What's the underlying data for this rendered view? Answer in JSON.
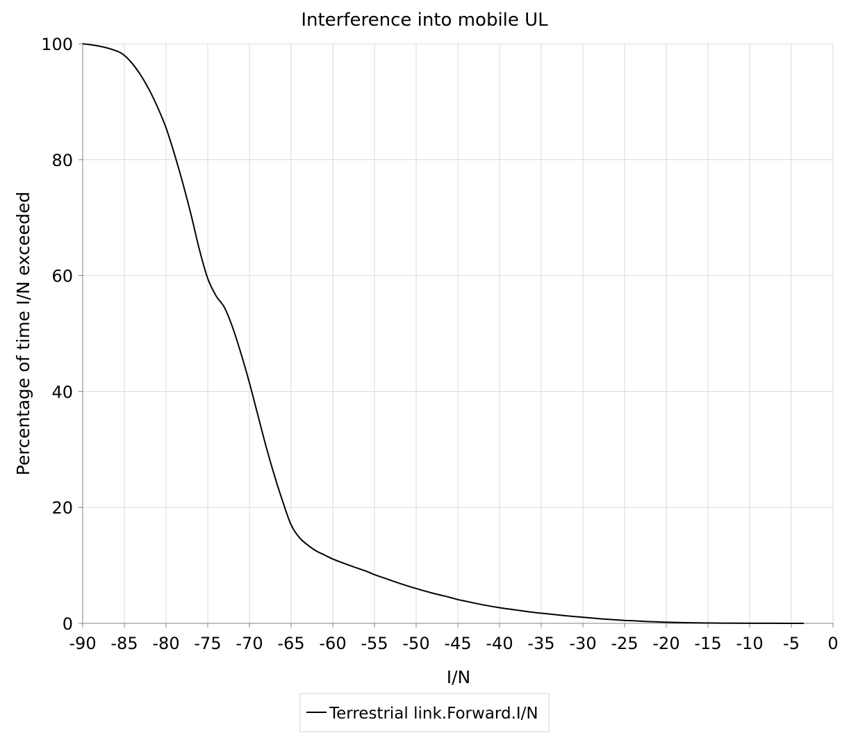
{
  "chart_data": {
    "type": "line",
    "title": "Interference into mobile UL",
    "xlabel": "I/N",
    "ylabel": "Percentage of time I/N exceeded",
    "xlim": [
      -90,
      0
    ],
    "ylim": [
      0,
      100
    ],
    "x_ticks": [
      -90,
      -85,
      -80,
      -75,
      -70,
      -65,
      -60,
      -55,
      -50,
      -45,
      -40,
      -35,
      -30,
      -25,
      -20,
      -15,
      -10,
      -5,
      0
    ],
    "y_ticks": [
      0,
      20,
      40,
      60,
      80,
      100
    ],
    "x_tick_labels": [
      "-90",
      "-85",
      "-80",
      "-75",
      "-70",
      "-65",
      "-60",
      "-55",
      "-50",
      "-45",
      "-40",
      "-35",
      "-30",
      "-25",
      "-20",
      "-15",
      "-10",
      "-5",
      "0"
    ],
    "y_tick_labels": [
      "0",
      "20",
      "40",
      "60",
      "80",
      "100"
    ],
    "grid": true,
    "legend_position": "bottom-center",
    "series": [
      {
        "name": "Terrestrial link.Forward.I/N",
        "color": "#000000",
        "x": [
          -90,
          -88,
          -86,
          -85,
          -84,
          -83,
          -82,
          -81,
          -80,
          -79,
          -78,
          -77,
          -76,
          -75,
          -74,
          -73,
          -72,
          -71,
          -70,
          -69,
          -68,
          -67,
          -66,
          -65,
          -64,
          -63,
          -62,
          -61,
          -60,
          -58,
          -56,
          -55,
          -54,
          -52,
          -50,
          -48,
          -46,
          -45,
          -44,
          -42,
          -40,
          -38,
          -36,
          -35,
          -34,
          -32,
          -30,
          -28,
          -26,
          -25,
          -24,
          -22,
          -20,
          -18,
          -16,
          -15,
          -14,
          -12,
          -10,
          -8,
          -6,
          -5,
          -4,
          -3.5
        ],
        "y": [
          100,
          99.6,
          98.8,
          98,
          96.5,
          94.5,
          92,
          89,
          85.5,
          81,
          76,
          70.5,
          64.5,
          59.5,
          56.5,
          54.5,
          51,
          46.5,
          41.5,
          36,
          30.5,
          25.5,
          21,
          17,
          14.8,
          13.5,
          12.5,
          11.8,
          11.1,
          10,
          9,
          8.4,
          7.9,
          6.9,
          6,
          5.2,
          4.5,
          4.1,
          3.8,
          3.2,
          2.7,
          2.3,
          1.9,
          1.75,
          1.6,
          1.3,
          1.05,
          0.8,
          0.6,
          0.5,
          0.45,
          0.3,
          0.2,
          0.12,
          0.08,
          0.06,
          0.05,
          0.03,
          0.02,
          0.01,
          0.005,
          0.005,
          0,
          0
        ]
      }
    ]
  }
}
